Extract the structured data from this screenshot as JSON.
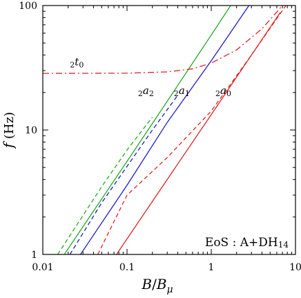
{
  "chart_data": {
    "type": "line",
    "xscale": "log",
    "yscale": "log",
    "xlim": [
      0.01,
      10
    ],
    "ylim": [
      1,
      100
    ],
    "xlabel_main": "B",
    "xlabel_sep": "/",
    "xlabel_sub_base": "B",
    "xlabel_sub": "μ",
    "ylabel_main": "f",
    "ylabel_unit": " (Hz)",
    "x_ticks": [
      {
        "value": 0.01,
        "label": "0.01"
      },
      {
        "value": 0.1,
        "label": "0.1"
      },
      {
        "value": 1,
        "label": "1"
      },
      {
        "value": 10,
        "label": "10"
      }
    ],
    "y_ticks": [
      {
        "value": 1,
        "label": "1"
      },
      {
        "value": 10,
        "label": "10"
      },
      {
        "value": 100,
        "label": "100"
      }
    ],
    "annotation": {
      "prefix": "EoS : A+DH",
      "suffix": "14"
    },
    "series": [
      {
        "id": "a0_solid",
        "label_pre": "2",
        "label_main": "a",
        "label_post": "0",
        "color": "#dd2222",
        "dash": "solid",
        "x": [
          0.075,
          0.3,
          1.0,
          3.0,
          6.6
        ],
        "y": [
          1,
          4.0,
          13.3,
          40,
          88
        ]
      },
      {
        "id": "a0_dashed",
        "color": "#dd2222",
        "dash": "dashed",
        "x": [
          0.045,
          0.1,
          0.3,
          1.0,
          3.0,
          7.7
        ],
        "y": [
          1,
          3.0,
          6.0,
          14.2,
          40,
          100
        ]
      },
      {
        "id": "a1_solid",
        "label_pre": "2",
        "label_main": "a",
        "label_post": "1",
        "color": "#1a1acc",
        "dash": "solid",
        "x": [
          0.028,
          0.1,
          0.3,
          1.0,
          2.8
        ],
        "y": [
          1,
          3.6,
          11.5,
          36,
          100
        ]
      },
      {
        "id": "a1_dashed",
        "color": "#1a1acc",
        "dash": "dashed",
        "x": [
          0.021,
          0.05,
          0.1,
          0.2,
          0.4
        ],
        "y": [
          1,
          2.6,
          5.1,
          10.0,
          19
        ]
      },
      {
        "id": "a2_solid",
        "label_pre": "2",
        "label_main": "a",
        "label_post": "2",
        "color": "#22aa22",
        "dash": "solid",
        "x": [
          0.018,
          0.1,
          0.3,
          1.0,
          1.7
        ],
        "y": [
          1,
          5.6,
          17,
          58,
          100
        ]
      },
      {
        "id": "a2_dashed",
        "color": "#22aa22",
        "dash": "dashed",
        "x": [
          0.015,
          0.05,
          0.1,
          0.2
        ],
        "y": [
          1,
          3.5,
          6.9,
          12.7
        ]
      },
      {
        "id": "t0",
        "label_pre": "2",
        "label_main": "t",
        "label_post": "0",
        "color": "#dd2222",
        "dash": "dashdot",
        "x": [
          0.01,
          0.1,
          0.3,
          0.6,
          1.0,
          2.0,
          4.0,
          7.0
        ],
        "y": [
          28.5,
          28.6,
          29.3,
          31,
          34.5,
          44,
          65,
          100
        ]
      }
    ]
  }
}
